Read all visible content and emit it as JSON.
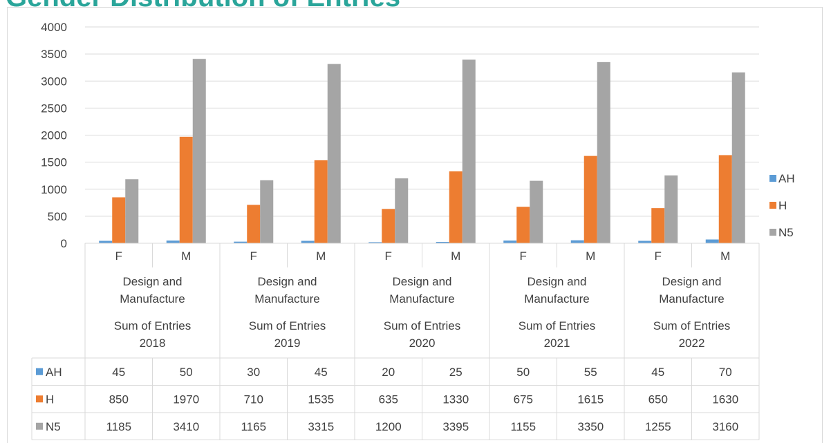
{
  "header": {
    "title_fragment": "Gender Distribution of Entries"
  },
  "colors": {
    "AH": "#5b9bd5",
    "H": "#ed7d31",
    "N5": "#a5a5a5",
    "grid": "#d9d9d9",
    "text": "#404040",
    "cut_title": "#2aa59a"
  },
  "chart_data": {
    "type": "bar",
    "ylim": [
      0,
      4000
    ],
    "yticks": [
      0,
      500,
      1000,
      1500,
      2000,
      2500,
      3000,
      3500,
      4000
    ],
    "grid": true,
    "legend_position": "right",
    "level1": [
      "F",
      "M",
      "F",
      "M",
      "F",
      "M",
      "F",
      "M",
      "F",
      "M"
    ],
    "level2": [
      {
        "line1": "Design and",
        "line2": "Manufacture"
      },
      {
        "line1": "Design and",
        "line2": "Manufacture"
      },
      {
        "line1": "Design and",
        "line2": "Manufacture"
      },
      {
        "line1": "Design and",
        "line2": "Manufacture"
      },
      {
        "line1": "Design and",
        "line2": "Manufacture"
      }
    ],
    "level3": [
      {
        "line1": "Sum of Entries",
        "line2": "2018"
      },
      {
        "line1": "Sum of Entries",
        "line2": "2019"
      },
      {
        "line1": "Sum of Entries",
        "line2": "2020"
      },
      {
        "line1": "Sum of Entries",
        "line2": "2021"
      },
      {
        "line1": "Sum of Entries",
        "line2": "2022"
      }
    ],
    "series": [
      {
        "name": "AH",
        "color": "#5b9bd5",
        "values": [
          45,
          50,
          30,
          45,
          20,
          25,
          50,
          55,
          45,
          70
        ]
      },
      {
        "name": "H",
        "color": "#ed7d31",
        "values": [
          850,
          1970,
          710,
          1535,
          635,
          1330,
          675,
          1615,
          650,
          1630
        ]
      },
      {
        "name": "N5",
        "color": "#a5a5a5",
        "values": [
          1185,
          3410,
          1165,
          3315,
          1200,
          3395,
          1155,
          3350,
          1255,
          3160
        ]
      }
    ]
  }
}
